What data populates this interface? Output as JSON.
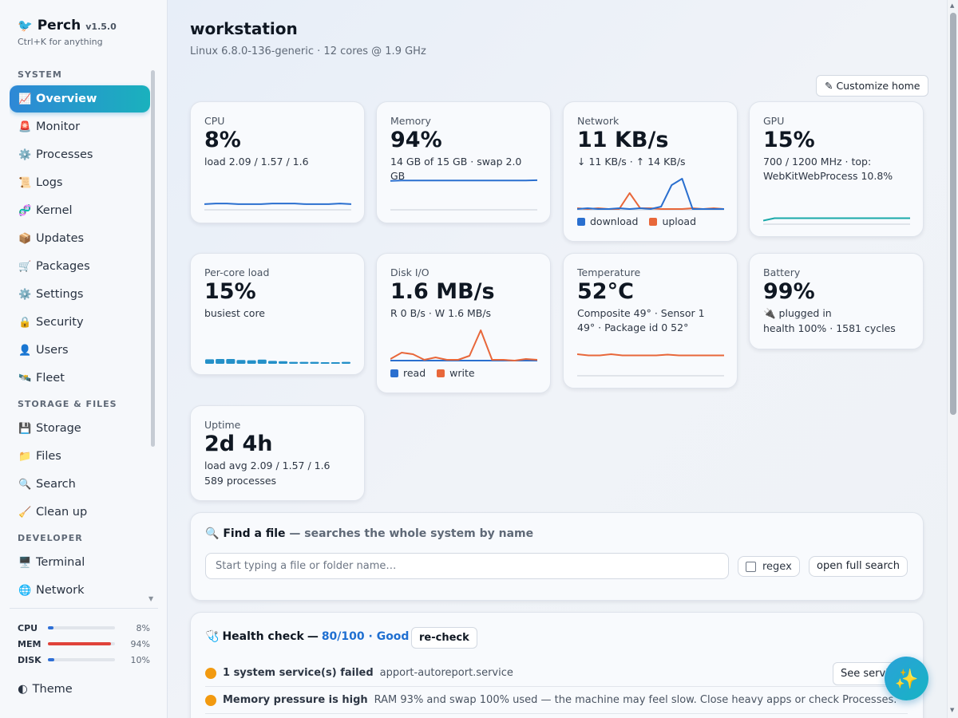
{
  "app": {
    "icon": "bird-icon",
    "name": "Perch",
    "version": "v1.5.0",
    "hint": "Ctrl+K for anything"
  },
  "nav": {
    "section_system": "SYSTEM",
    "section_storage": "STORAGE & FILES",
    "section_developer": "DEVELOPER",
    "items": [
      {
        "icon": "📈",
        "label": "Overview"
      },
      {
        "icon": "🚨",
        "label": "Monitor"
      },
      {
        "icon": "⚙️",
        "label": "Processes"
      },
      {
        "icon": "📜",
        "label": "Logs"
      },
      {
        "icon": "🧬",
        "label": "Kernel"
      },
      {
        "icon": "📦",
        "label": "Updates"
      },
      {
        "icon": "🛒",
        "label": "Packages"
      },
      {
        "icon": "⚙️",
        "label": "Settings"
      },
      {
        "icon": "🔒",
        "label": "Security"
      },
      {
        "icon": "👤",
        "label": "Users"
      },
      {
        "icon": "🛰️",
        "label": "Fleet"
      },
      {
        "icon": "💾",
        "label": "Storage"
      },
      {
        "icon": "📁",
        "label": "Files"
      },
      {
        "icon": "🔍",
        "label": "Search"
      },
      {
        "icon": "🧹",
        "label": "Clean up"
      },
      {
        "icon": "🖥️",
        "label": "Terminal"
      },
      {
        "icon": "🌐",
        "label": "Network"
      }
    ]
  },
  "mini_stats": [
    {
      "label": "CPU",
      "value": "8%",
      "fraction": 0.08,
      "color": "#2e6fd6"
    },
    {
      "label": "MEM",
      "value": "94%",
      "fraction": 0.94,
      "color": "#e0433a"
    },
    {
      "label": "DISK",
      "value": "10%",
      "fraction": 0.1,
      "color": "#2e6fd6"
    }
  ],
  "theme_label": "Theme",
  "theme_icon": "◐",
  "header": {
    "title": "workstation",
    "subtitle": "Linux 6.8.0-136-generic · 12 cores @ 1.9 GHz",
    "customize": "✎ Customize home"
  },
  "cards": {
    "cpu": {
      "label": "CPU",
      "value": "8%",
      "sub": "load 2.09 / 1.57 / 1.6",
      "color": "#2a6fcf",
      "series": [
        7,
        8,
        8,
        7,
        7,
        7,
        8,
        8,
        8,
        7,
        7,
        7,
        8,
        7
      ]
    },
    "memory": {
      "label": "Memory",
      "value": "94%",
      "sub": "14 GB of 15 GB · swap 2.0 GB",
      "color": "#2a6fcf",
      "series": [
        93,
        94,
        94,
        94,
        94,
        94,
        94,
        94,
        94,
        94,
        94,
        94,
        94,
        95
      ]
    },
    "network": {
      "label": "Network",
      "value": "11 KB/s",
      "sub": "↓ 11 KB/s · ↑ 14 KB/s",
      "legend_download": "download",
      "legend_upload": "upload",
      "download_color": "#2a6fcf",
      "upload_color": "#e8673a",
      "download": [
        0,
        1,
        0,
        0,
        1,
        0,
        1,
        0,
        3,
        30,
        38,
        0,
        0,
        0,
        0
      ],
      "upload": [
        1,
        0,
        1,
        0,
        0,
        20,
        1,
        1,
        0,
        0,
        0,
        1,
        0,
        1,
        0
      ]
    },
    "gpu": {
      "label": "GPU",
      "value": "15%",
      "sub": "700 / 1200 MHz · top: WebKitWebProcess 10.8%",
      "color": "#1aa9a9",
      "series": [
        8,
        15,
        15,
        15,
        15,
        15,
        15,
        15,
        15,
        15,
        15,
        15,
        15,
        15
      ]
    },
    "percore": {
      "label": "Per-core load",
      "value": "15%",
      "sub": "busiest core",
      "color": "#2490c8",
      "cores": [
        14,
        15,
        15,
        12,
        11,
        13,
        9,
        8,
        6,
        6,
        6,
        5,
        5,
        6
      ]
    },
    "disk": {
      "label": "Disk I/O",
      "value": "1.6 MB/s",
      "sub": "R 0 B/s · W 1.6 MB/s",
      "legend_read": "read",
      "legend_write": "write",
      "read_color": "#2a6fcf",
      "write_color": "#e8673a",
      "read": [
        0,
        0,
        0,
        0,
        0,
        0,
        0,
        0,
        0,
        0,
        0,
        0,
        0,
        0
      ],
      "write": [
        2,
        10,
        8,
        1,
        4,
        1,
        1,
        6,
        38,
        1,
        1,
        0,
        2,
        1
      ]
    },
    "temperature": {
      "label": "Temperature",
      "value": "52°C",
      "sub": "Composite 49° · Sensor 1 49° · Package id 0 52°",
      "color": "#e8673a",
      "series": [
        52,
        49,
        49,
        52,
        49,
        49,
        49,
        49,
        51,
        49,
        49,
        49,
        49,
        49
      ]
    },
    "battery": {
      "label": "Battery",
      "value": "99%",
      "status": "🔌 plugged in",
      "health": "health 100% · 1581 cycles"
    },
    "uptime": {
      "label": "Uptime",
      "value": "2d 4h",
      "load": "load avg 2.09 / 1.57 / 1.6",
      "processes": "589 processes"
    }
  },
  "find": {
    "icon": "🔍",
    "title": "Find a file",
    "subtitle": "— searches the whole system by name",
    "placeholder": "Start typing a file or folder name…",
    "value": "",
    "regex_label": "regex",
    "full_search": "open full search"
  },
  "health": {
    "icon": "🩺",
    "title": "Health check",
    "dash": "—",
    "score": "80/100 · Good",
    "recheck": "re-check",
    "issues": [
      {
        "title": "1 system service(s) failed",
        "detail": "apport-autoreport.service",
        "action": "See services"
      },
      {
        "title": "Memory pressure is high",
        "detail": "RAM 93% and swap 100% used — the machine may feel slow. Close heavy apps or check Processes."
      }
    ]
  },
  "fab_icon": "✨"
}
